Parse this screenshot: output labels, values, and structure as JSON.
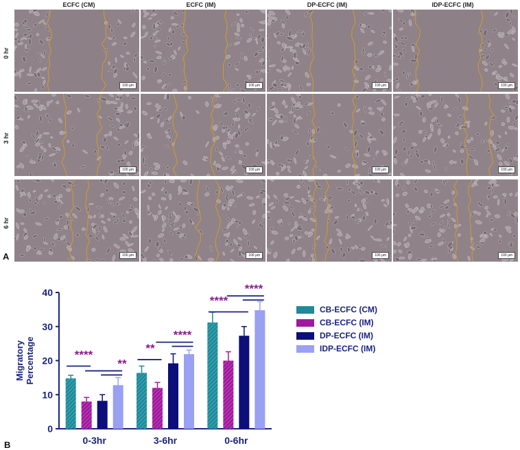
{
  "figure": {
    "columns": [
      "ECFC (CM)",
      "ECFC (IM)",
      "DP-ECFC (IM)",
      "IDP-ECFC (IM)"
    ],
    "rows": [
      "0 hr",
      "3 hr",
      "6 hr"
    ],
    "scale_bar": "100 µm",
    "panel_a": "A",
    "panel_b": "B"
  },
  "chart_data": {
    "type": "bar",
    "ylabel": "Migratory Percentage",
    "xlabel": "",
    "ylim": [
      0,
      40
    ],
    "yticks": [
      0,
      10,
      20,
      30,
      40
    ],
    "categories": [
      "0-3hr",
      "3-6hr",
      "0-6hr"
    ],
    "series": [
      {
        "name": "CB-ECFC (CM)",
        "color": "#1e8a9a",
        "values": [
          14.8,
          16.4,
          31.2
        ],
        "errors": [
          0.9,
          2.0,
          3.0
        ]
      },
      {
        "name": "CB-ECFC (IM)",
        "color": "#a0199c",
        "values": [
          8.0,
          12.0,
          20.0
        ],
        "errors": [
          1.2,
          1.6,
          2.6
        ]
      },
      {
        "name": "DP-ECFC (IM)",
        "color": "#0c0f7a",
        "values": [
          8.2,
          19.2,
          27.3
        ],
        "errors": [
          1.8,
          2.8,
          2.7
        ]
      },
      {
        "name": "IDP-ECFC (IM)",
        "color": "#9aa0f2",
        "values": [
          12.8,
          21.9,
          34.8
        ],
        "errors": [
          2.2,
          1.2,
          2.5
        ]
      }
    ],
    "significance": [
      {
        "label": "****",
        "category": 0
      },
      {
        "label": "**",
        "category": 0
      },
      {
        "label": "**",
        "category": 1
      },
      {
        "label": "****",
        "category": 1
      },
      {
        "label": "****",
        "category": 2
      },
      {
        "label": "****",
        "category": 2
      }
    ],
    "sig_color": "#8b1a8f"
  }
}
